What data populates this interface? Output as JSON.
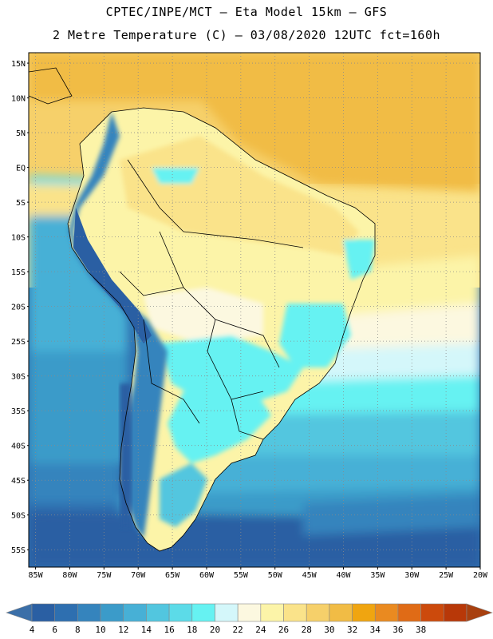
{
  "header": {
    "title_line1": "CPTEC/INPE/MCT –  Eta Model 15km – GFS",
    "title_line2": "2 Metre Temperature (C) – 03/08/2020 12UTC fct=160h"
  },
  "map": {
    "lat_labels": [
      "15N",
      "10N",
      "5N",
      "EQ",
      "5S",
      "10S",
      "15S",
      "20S",
      "25S",
      "30S",
      "35S",
      "40S",
      "45S",
      "50S",
      "55S"
    ],
    "lon_labels": [
      "85W",
      "80W",
      "75W",
      "70W",
      "65W",
      "60W",
      "55W",
      "50W",
      "45W",
      "40W",
      "35W",
      "30W",
      "25W",
      "20W"
    ],
    "lat_range": [
      -57.5,
      16.5
    ],
    "lon_range": [
      -86,
      -20
    ],
    "grid": "dotted"
  },
  "colorbar": {
    "labels": [
      "4",
      "6",
      "8",
      "10",
      "12",
      "14",
      "16",
      "18",
      "20",
      "22",
      "24",
      "26",
      "28",
      "30",
      "32",
      "34",
      "36",
      "38"
    ],
    "colors": [
      "#2a5fa3",
      "#2e6fb0",
      "#3584bd",
      "#3b9bc9",
      "#47b0d6",
      "#52c6df",
      "#5cdbe8",
      "#66f2f2",
      "#d4f7fa",
      "#fcf8e0",
      "#fcf4a8",
      "#fae38a",
      "#f6d06a",
      "#f1bc45",
      "#f0a510",
      "#ea8a20",
      "#e06b16",
      "#cc4a0c",
      "#b83808"
    ],
    "under_color": "#3b6fa8",
    "over_color": "#a8400f"
  }
}
